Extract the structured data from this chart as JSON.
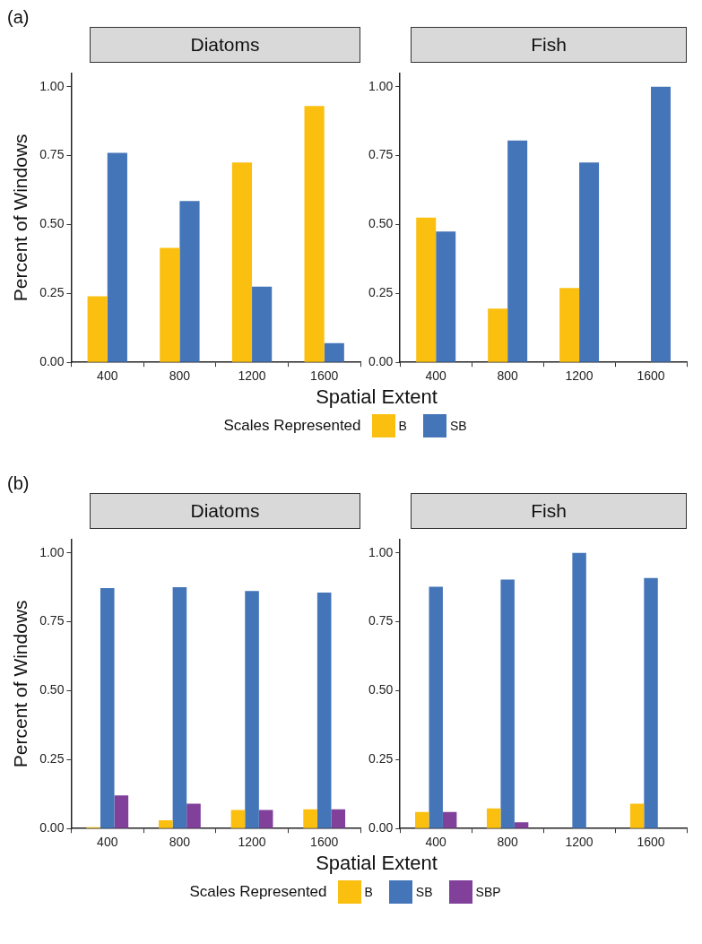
{
  "chart_data": [
    {
      "type": "bar",
      "title": "Diatoms",
      "annotations": [
        "(a)"
      ],
      "ylabel": "Percent of Windows",
      "xlabel": "Spatial Extent",
      "legend_title": "Scales Represented",
      "legend": "bottom",
      "grid": false,
      "categories": [
        "400",
        "800",
        "1200",
        "1600"
      ],
      "ylim": [
        0,
        1.05
      ],
      "yticks": [
        {
          "value": 0,
          "label": "0.00"
        },
        {
          "value": 0.25,
          "label": "0.25"
        },
        {
          "value": 0.5,
          "label": "0.50"
        },
        {
          "value": 0.75,
          "label": "0.75"
        },
        {
          "value": 1,
          "label": "1.00"
        }
      ],
      "series": [
        {
          "name": "B",
          "color": "#fbbf0f",
          "values": [
            0.24,
            0.415,
            0.725,
            0.93
          ]
        },
        {
          "name": "SB",
          "color": "#4475b9",
          "values": [
            0.76,
            0.585,
            0.275,
            0.07
          ]
        }
      ]
    },
    {
      "type": "bar",
      "title": "Fish",
      "grid": false,
      "categories": [
        "400",
        "800",
        "1200",
        "1600"
      ],
      "ylim": [
        0,
        1.05
      ],
      "yticks": [
        {
          "value": 0,
          "label": "0.00"
        },
        {
          "value": 0.25,
          "label": "0.25"
        },
        {
          "value": 0.5,
          "label": "0.50"
        },
        {
          "value": 0.75,
          "label": "0.75"
        },
        {
          "value": 1,
          "label": "1.00"
        }
      ],
      "series": [
        {
          "color": "#fbbf0f",
          "values": [
            0.525,
            0.195,
            0.27,
            null
          ]
        },
        {
          "color": "#4475b9",
          "values": [
            0.475,
            0.805,
            0.725,
            1.0
          ]
        }
      ]
    },
    {
      "type": "bar",
      "title": "Diatoms",
      "annotations": [
        "(b)"
      ],
      "ylabel": "Percent of Windows",
      "xlabel": "Spatial Extent",
      "legend_title": "Scales Represented",
      "legend": "bottom",
      "grid": false,
      "categories": [
        "400",
        "800",
        "1200",
        "1600"
      ],
      "ylim": [
        0,
        1.05
      ],
      "yticks": [
        {
          "value": 0,
          "label": "0.00"
        },
        {
          "value": 0.25,
          "label": "0.25"
        },
        {
          "value": 0.5,
          "label": "0.50"
        },
        {
          "value": 0.75,
          "label": "0.75"
        },
        {
          "value": 1,
          "label": "1.00"
        }
      ],
      "series": [
        {
          "name": "B",
          "color": "#fbbf0f",
          "values": [
            0.005,
            0.03,
            0.067,
            0.07
          ]
        },
        {
          "name": "SB",
          "color": "#4475b9",
          "values": [
            0.872,
            0.876,
            0.862,
            0.856
          ]
        },
        {
          "name": "SBP",
          "color": "#81409a",
          "values": [
            0.12,
            0.09,
            0.067,
            0.07
          ]
        }
      ]
    },
    {
      "type": "bar",
      "title": "Fish",
      "grid": false,
      "categories": [
        "400",
        "800",
        "1200",
        "1600"
      ],
      "ylim": [
        0,
        1.05
      ],
      "yticks": [
        {
          "value": 0,
          "label": "0.00"
        },
        {
          "value": 0.25,
          "label": "0.25"
        },
        {
          "value": 0.5,
          "label": "0.50"
        },
        {
          "value": 0.75,
          "label": "0.75"
        },
        {
          "value": 1,
          "label": "1.00"
        }
      ],
      "series": [
        {
          "color": "#fbbf0f",
          "values": [
            0.06,
            0.073,
            null,
            0.09
          ]
        },
        {
          "color": "#4475b9",
          "values": [
            0.877,
            0.903,
            1.0,
            0.909
          ]
        },
        {
          "color": "#81409a",
          "values": [
            0.06,
            0.023,
            null,
            null
          ]
        }
      ]
    }
  ]
}
